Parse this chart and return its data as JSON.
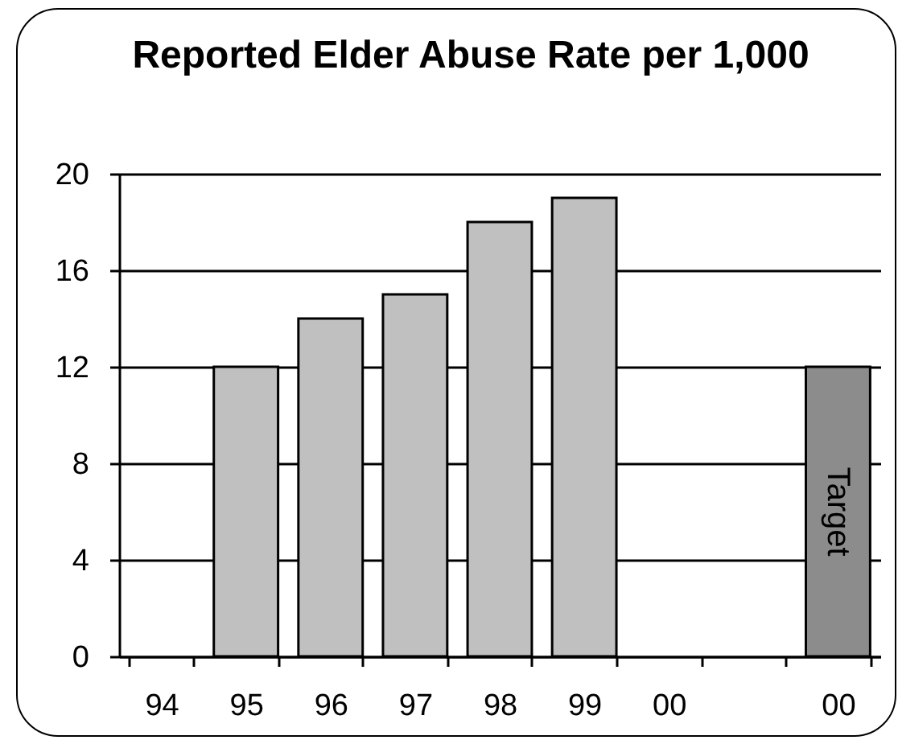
{
  "chart_data": {
    "type": "bar",
    "title": "Reported Elder Abuse Rate per 1,000",
    "categories": [
      "94",
      "95",
      "96",
      "97",
      "98",
      "99",
      "00",
      null,
      "00"
    ],
    "values": [
      null,
      12,
      14,
      15,
      18,
      19,
      null,
      null,
      12
    ],
    "colors": [
      null,
      "#c0c0c0",
      "#c0c0c0",
      "#c0c0c0",
      "#c0c0c0",
      "#c0c0c0",
      null,
      null,
      "#8c8c8c"
    ],
    "value_labels": [
      null,
      null,
      null,
      null,
      null,
      null,
      null,
      null,
      "Target"
    ],
    "ylim": [
      0,
      20
    ],
    "yticks": [
      0,
      4,
      8,
      12,
      16,
      20
    ],
    "grid": "y"
  }
}
